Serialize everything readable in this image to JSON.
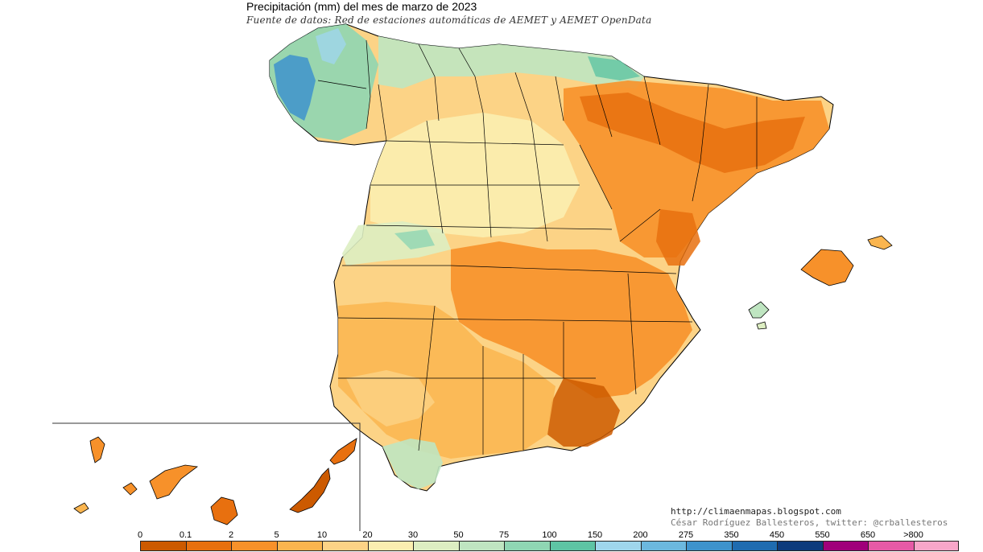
{
  "title": "Precipitación (mm) del mes de marzo  de 2023",
  "subtitle": "Fuente de datos: Red de estaciones automáticas de AEMET y AEMET OpenData",
  "credits": {
    "url": "http://climaenmapas.blogspot.com",
    "author": "César Rodríguez Ballesteros, twitter: @crballesteros"
  },
  "legend": {
    "labels": [
      "0",
      "0.1",
      "2",
      "5",
      "10",
      "20",
      "30",
      "50",
      "75",
      "100",
      "150",
      "200",
      "275",
      "350",
      "450",
      "550",
      "650",
      ">800"
    ],
    "colors": [
      "#cc5a00",
      "#e8700f",
      "#f7912a",
      "#fab54f",
      "#fcd386",
      "#fbeeb0",
      "#ddeec2",
      "#bfe5c1",
      "#8fd6b3",
      "#5ec4a4",
      "#9fd6ec",
      "#6cb8de",
      "#3e93cc",
      "#1f6cb0",
      "#0d3b7c",
      "#a0007a",
      "#e65aa6",
      "#f8a6c9"
    ]
  },
  "colors": {
    "very_dry": "#cc5a00",
    "dry": "#f7912a",
    "moderate": "#fab54f",
    "light": "#fcd386",
    "pale": "#fbeeb0",
    "green": "#bfe5c1",
    "teal": "#5ec4a4",
    "blue": "#3e93cc"
  }
}
